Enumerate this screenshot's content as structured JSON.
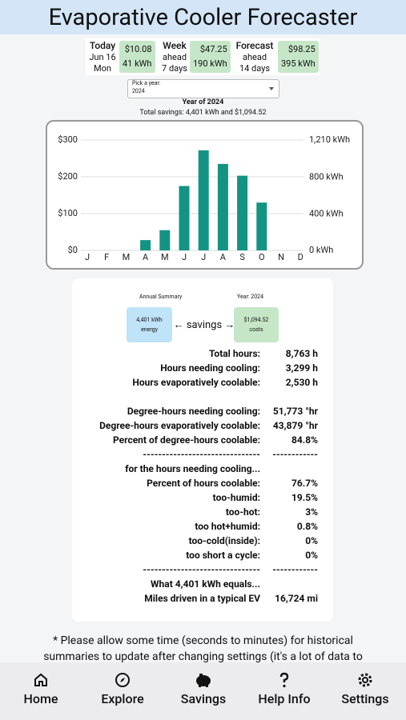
{
  "header": {
    "title": "Evaporative Cooler Forecaster"
  },
  "stats": [
    {
      "label": "Today",
      "line1": "Jun 16",
      "line2": "Mon",
      "money": "$10.08",
      "energy": "41 kWh"
    },
    {
      "label": "Week",
      "line1": "ahead",
      "line2": "7 days",
      "money": "$47.25",
      "energy": "190 kWh"
    },
    {
      "label": "Forecast",
      "line1": "ahead",
      "line2": "14 days",
      "money": "$98.25",
      "energy": "395 kWh"
    }
  ],
  "picker": {
    "label": "Pick a year:",
    "value": "2024"
  },
  "chart_data": {
    "type": "bar",
    "title": "Year of 2024",
    "subtitle": "Total savings: 4,401 kWh and $1,094.52",
    "categories": [
      "J",
      "F",
      "M",
      "A",
      "M",
      "J",
      "J",
      "A",
      "S",
      "O",
      "N",
      "D"
    ],
    "values": [
      0,
      0,
      0,
      28,
      55,
      175,
      272,
      235,
      203,
      130,
      0,
      0
    ],
    "color": "#139483",
    "ylim": [
      0,
      300
    ],
    "yticks": [
      {
        "value": 0,
        "label": "$0"
      },
      {
        "value": 100,
        "label": "$100"
      },
      {
        "value": 200,
        "label": "$200"
      },
      {
        "value": 300,
        "label": "$300"
      }
    ],
    "y2lim": [
      0,
      1210
    ],
    "y2ticks": [
      {
        "value": 0,
        "label": "0 kWh"
      },
      {
        "value": 400,
        "label": "400 kWh"
      },
      {
        "value": 800,
        "label": "800 kWh"
      },
      {
        "value": 1210,
        "label": "1,210 kWh"
      }
    ],
    "grid": true
  },
  "summary": {
    "caption_left": "Annual Summary",
    "caption_right": "Year: 2024",
    "energy_box": [
      "4,401 kWh",
      "energy"
    ],
    "arrow": "← savings →",
    "cost_box": [
      "$1,094.52",
      "costs"
    ],
    "groups": [
      [
        [
          "Total hours:",
          "8,763 h"
        ],
        [
          "Hours needing cooling:",
          "3,299 h"
        ],
        [
          "Hours evaporatively coolable:",
          "2,530 h"
        ]
      ],
      [
        [
          "Degree-hours needing cooling:",
          "51,773 °hr"
        ],
        [
          "Degree-hours evaporatively coolable:",
          "43,879 °hr"
        ],
        [
          "Percent of degree-hours coolable:",
          "84.8%"
        ],
        [
          "-------------------------------",
          "------------"
        ],
        [
          "for the hours needing cooling..."
        ],
        [
          "Percent of hours coolable:",
          "76.7%"
        ],
        [
          "too-humid:",
          "19.5%"
        ],
        [
          "too-hot:",
          "3%"
        ],
        [
          "too hot+humid:",
          "0.8%"
        ],
        [
          "too-cold(inside):",
          "0%"
        ],
        [
          "too short a cycle:",
          "0%"
        ],
        [
          "-------------------------------",
          "------------"
        ],
        [
          "What 4,401 kWh equals..."
        ],
        [
          "Miles driven in a typical EV",
          "16,724 mi"
        ]
      ]
    ]
  },
  "note": "* Please allow some time (seconds to minutes) for historical summaries to update after changing settings (it's a lot of data to",
  "nav": [
    "Home",
    "Explore",
    "Savings",
    "Help Info",
    "Settings"
  ]
}
